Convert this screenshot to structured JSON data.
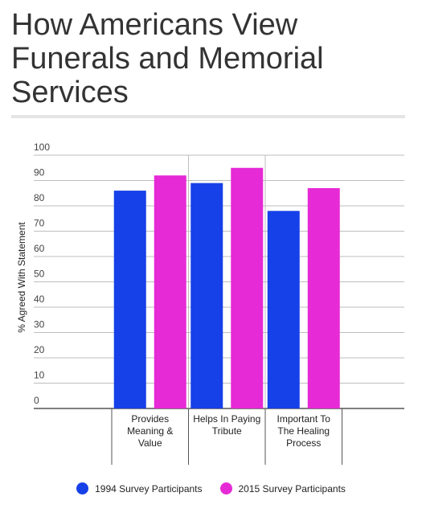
{
  "title": "How Americans View Funerals and Memorial Services",
  "chart_data": {
    "type": "bar",
    "title": "How Americans View Funerals and Memorial Services",
    "xlabel": "",
    "ylabel": "% Agreed With Statement",
    "ylim": [
      0,
      100
    ],
    "yticks": [
      0,
      10,
      20,
      30,
      40,
      50,
      60,
      70,
      80,
      90,
      100
    ],
    "grid": true,
    "legend_position": "bottom",
    "categories": [
      [
        "Provides",
        "Meaning &",
        "Value"
      ],
      [
        "Helps In Paying",
        "Tribute"
      ],
      [
        "Important To",
        "The Healing",
        "Process"
      ]
    ],
    "series": [
      {
        "name": "1994 Survey Participants",
        "color": "#1640e8",
        "values": [
          86,
          89,
          78
        ]
      },
      {
        "name": "2015 Survey Participants",
        "color": "#e62ad6",
        "values": [
          92,
          95,
          87
        ]
      }
    ]
  }
}
